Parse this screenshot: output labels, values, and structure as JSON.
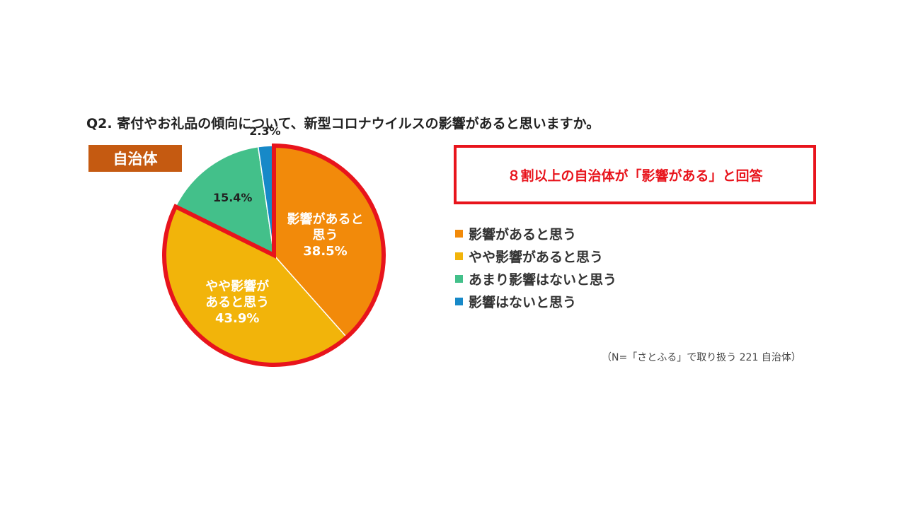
{
  "question": "Q2. 寄付やお礼品の傾向について、新型コロナウイルスの影響があると思いますか。",
  "tag": "自治体",
  "callout": "８割以上の自治体が「影響がある」と回答",
  "note": "（N=「さとふる」で取り扱う 221 自治体）",
  "colors": {
    "highlight": "#e8141c",
    "tag_bg": "#c55a11"
  },
  "chart_data": {
    "type": "pie",
    "start": "12 o'clock",
    "direction": "clockwise",
    "legend_position": "right",
    "slices": [
      {
        "label": "影響があると思う",
        "value": 38.5,
        "value_label": "38.5%",
        "pie_label": [
          "影響があると",
          "思う",
          "38.5%"
        ],
        "color": "#f28a0a",
        "text_color": "#ffffff",
        "highlighted": true
      },
      {
        "label": "やや影響があると思う",
        "value": 43.9,
        "value_label": "43.9%",
        "pie_label": [
          "やや影響が",
          "あると思う",
          "43.9%"
        ],
        "color": "#f2b40a",
        "text_color": "#ffffff",
        "highlighted": true
      },
      {
        "label": "あまり影響はないと思う",
        "value": 15.4,
        "value_label": "15.4%",
        "pie_label": [
          "15.4%"
        ],
        "color": "#43c08a",
        "text_color": "#222222",
        "highlighted": false
      },
      {
        "label": "影響はないと思う",
        "value": 2.3,
        "value_label": "2.3%",
        "pie_label": [
          "2.3%"
        ],
        "color": "#1789c8",
        "text_color": "#222222",
        "highlighted": false
      }
    ]
  }
}
